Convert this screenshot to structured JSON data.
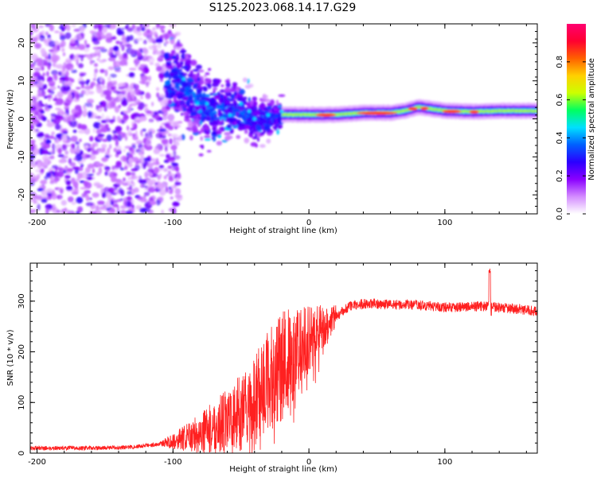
{
  "title": "S125.2023.068.14.17.G29",
  "chart_data": [
    {
      "type": "heatmap",
      "name": "spectrogram",
      "xlabel": "Height of straight line (km)",
      "ylabel": "Frequency (Hz)",
      "xlim": [
        -205,
        168
      ],
      "ylim": [
        -25,
        25
      ],
      "xticks": [
        -200,
        -100,
        0,
        100
      ],
      "yticks": [
        -20,
        -10,
        0,
        10,
        20
      ],
      "ridge": [
        [
          -120,
          10
        ],
        [
          -100,
          10
        ],
        [
          -90,
          8
        ],
        [
          -80,
          4
        ],
        [
          -70,
          2
        ],
        [
          -60,
          3
        ],
        [
          -50,
          2
        ],
        [
          -40,
          0
        ],
        [
          -30,
          0
        ],
        [
          -20,
          1
        ],
        [
          -10,
          1
        ],
        [
          0,
          1
        ],
        [
          20,
          1
        ],
        [
          40,
          1.5
        ],
        [
          60,
          1.5
        ],
        [
          70,
          2
        ],
        [
          80,
          3
        ],
        [
          90,
          2.5
        ],
        [
          100,
          2
        ],
        [
          120,
          1.8
        ],
        [
          140,
          2
        ],
        [
          168,
          2
        ]
      ],
      "colorbar": {
        "label": "Normalized spectral amplitude",
        "range": [
          0,
          1
        ],
        "ticks": [
          "0.0",
          "0.2",
          "0.4",
          "0.6",
          "0.8"
        ],
        "tick_values": [
          0.0,
          0.2,
          0.4,
          0.6,
          0.8
        ],
        "colors": [
          "#ffffff",
          "#d48cff",
          "#8a00ff",
          "#2b00ff",
          "#0060ff",
          "#00e0ff",
          "#00ff60",
          "#ccff00",
          "#ffd000",
          "#ff6000",
          "#ff0030",
          "#ff0070"
        ]
      }
    },
    {
      "type": "line",
      "name": "snr",
      "xlabel": "Height of straight line (km)",
      "ylabel": "SNR (10 * v/v)",
      "xlim": [
        -205,
        168
      ],
      "ylim": [
        0,
        375
      ],
      "xticks": [
        -200,
        -100,
        0,
        100
      ],
      "yticks": [
        0,
        100,
        200,
        300
      ],
      "color": "#ff2020",
      "trend": [
        [
          -205,
          10
        ],
        [
          -160,
          10
        ],
        [
          -130,
          12
        ],
        [
          -110,
          18
        ],
        [
          -90,
          30
        ],
        [
          -70,
          50
        ],
        [
          -50,
          80
        ],
        [
          -40,
          110
        ],
        [
          -30,
          140
        ],
        [
          -20,
          170
        ],
        [
          -10,
          200
        ],
        [
          0,
          225
        ],
        [
          10,
          250
        ],
        [
          20,
          270
        ],
        [
          30,
          290
        ],
        [
          40,
          295
        ],
        [
          80,
          292
        ],
        [
          100,
          288
        ],
        [
          130,
          290
        ],
        [
          150,
          285
        ],
        [
          168,
          280
        ]
      ],
      "spike": [
        133,
        365
      ]
    }
  ]
}
